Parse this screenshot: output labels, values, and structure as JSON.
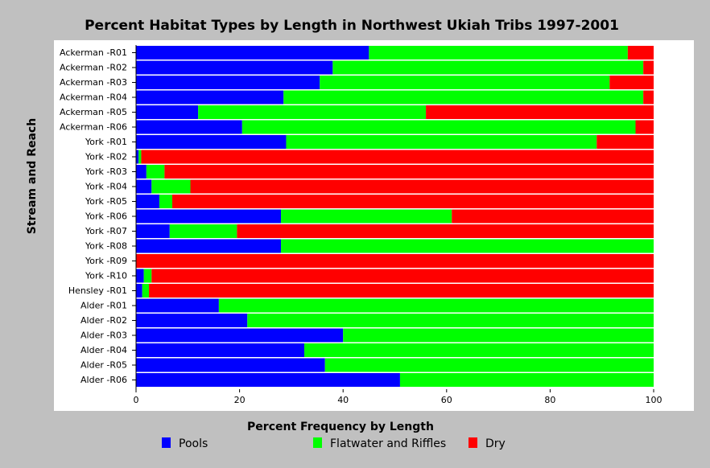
{
  "chart_data": {
    "type": "bar",
    "orientation": "horizontal",
    "stacked": true,
    "title": "Percent Habitat Types by Length in Northwest Ukiah Tribs 1997-2001",
    "xlabel": "Percent Frequency by Length",
    "ylabel": "Stream and Reach",
    "xlim": [
      0,
      100
    ],
    "xticks": [
      "0",
      "20",
      "40",
      "60",
      "80",
      "100"
    ],
    "grid": false,
    "legend_position": "bottom",
    "categories": [
      "Ackerman -R01",
      "Ackerman -R02",
      "Ackerman -R03",
      "Ackerman -R04",
      "Ackerman -R05",
      "Ackerman -R06",
      "York -R01",
      "York -R02",
      "York -R03",
      "York -R04",
      "York -R05",
      "York -R06",
      "York -R07",
      "York -R08",
      "York -R09",
      "York -R10",
      "Hensley -R01",
      "Alder -R01",
      "Alder -R02",
      "Alder -R03",
      "Alder -R04",
      "Alder -R05",
      "Alder -R06"
    ],
    "series": [
      {
        "name": "Pools",
        "color": "#0000ff",
        "values": [
          45,
          38,
          35.5,
          28.5,
          12,
          20.5,
          29,
          0.5,
          2,
          3,
          4.5,
          28,
          6.5,
          28,
          0,
          1.5,
          1.2,
          16,
          21.5,
          40,
          32.5,
          36.5,
          51
        ]
      },
      {
        "name": "Flatwater and Riffles",
        "color": "#00ff00",
        "values": [
          50,
          60,
          56,
          69.5,
          44,
          76,
          60,
          0.5,
          3.5,
          7.5,
          2.5,
          33,
          13,
          72,
          0,
          1.5,
          1.3,
          84,
          78.5,
          60,
          67.5,
          63.5,
          49
        ]
      },
      {
        "name": "Dry",
        "color": "#ff0000",
        "values": [
          5,
          2,
          8.5,
          2,
          44,
          3.5,
          11,
          99,
          94.5,
          89.5,
          93,
          39,
          80.5,
          0,
          100,
          97,
          97.5,
          0,
          0,
          0,
          0,
          0,
          0
        ]
      }
    ]
  }
}
